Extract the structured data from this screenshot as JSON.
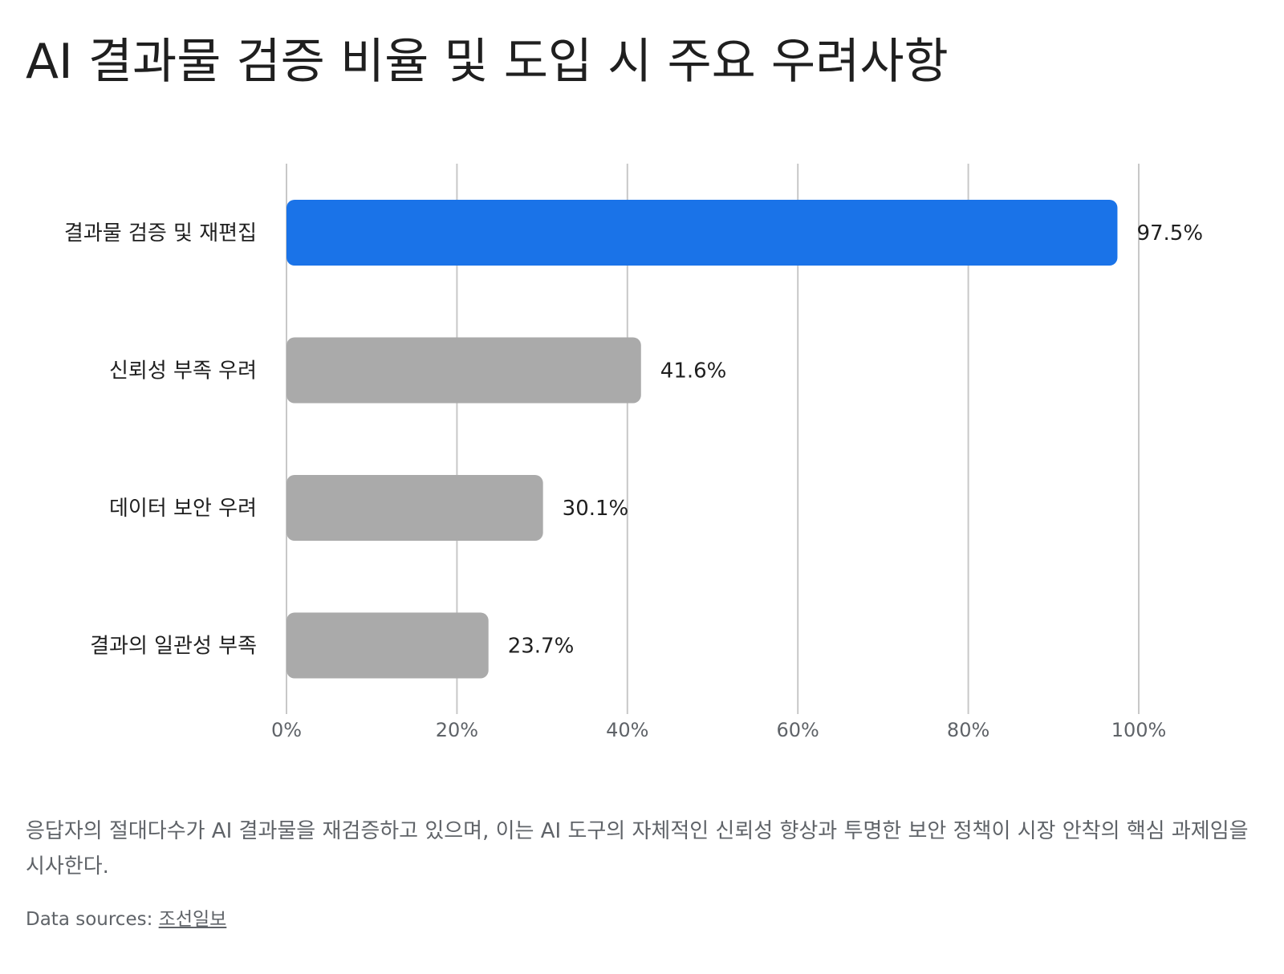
{
  "title": "AI 결과물 검증 비율 및 도입 시 주요 우려사항",
  "caption": "응답자의 절대다수가 AI 결과물을 재검증하고 있으며, 이는 AI 도구의 자체적인 신뢰성 향상과 투명한 보안 정책이 시장 안착의 핵심 과제임을 시사한다.",
  "sources": {
    "label": "Data sources:",
    "link": "조선일보"
  },
  "colors": {
    "highlight": "#1a73e8",
    "default": "#aaaaaa",
    "grid": "#c8c8c8"
  },
  "chart_data": {
    "type": "bar",
    "orientation": "horizontal",
    "categories": [
      "결과물 검증 및 재편집",
      "신뢰성 부족 우려",
      "데이터 보안 우려",
      "결과의 일관성 부족"
    ],
    "values": [
      97.5,
      41.6,
      30.1,
      23.7
    ],
    "value_labels": [
      "97.5%",
      "41.6%",
      "30.1%",
      "23.7%"
    ],
    "highlight_index": 0,
    "xlim": [
      0,
      100
    ],
    "x_ticks": [
      0,
      20,
      40,
      60,
      80,
      100
    ],
    "x_tick_labels": [
      "0%",
      "20%",
      "40%",
      "60%",
      "80%",
      "100%"
    ],
    "grid": true,
    "legend": "none"
  }
}
